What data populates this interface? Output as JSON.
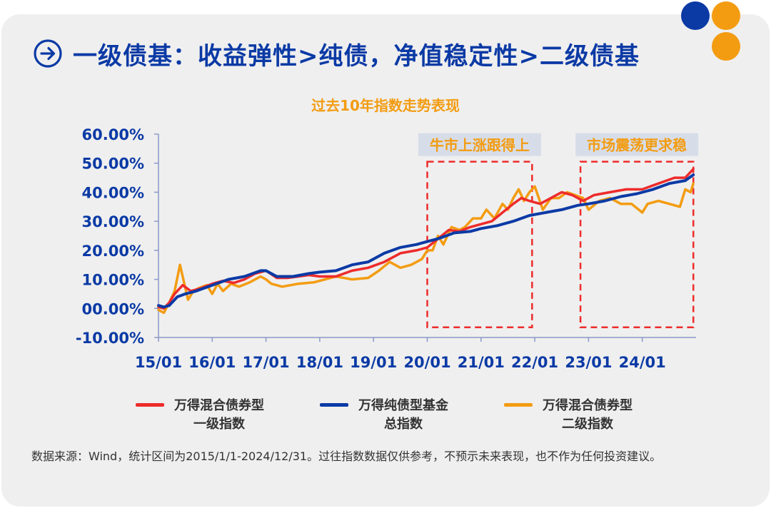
{
  "header": {
    "title": "一级债基：收益弹性>纯债，净值稳定性>二级债基",
    "arrow_icon": "arrow-right-circle-icon"
  },
  "colors": {
    "primary": "#0b3aa5",
    "accent": "#f39c12",
    "red": "#ee2b2b",
    "card_bg": "#efefef"
  },
  "chart_data": {
    "type": "line",
    "title": "过去10年指数走势表现",
    "xlabel": "",
    "ylabel": "",
    "ylim": [
      -0.1,
      0.6
    ],
    "y_ticks": [
      "60.00%",
      "50.00%",
      "40.00%",
      "30.00%",
      "20.00%",
      "10.00%",
      "00.00%",
      "-10.00%"
    ],
    "y_tick_values": [
      0.6,
      0.5,
      0.4,
      0.3,
      0.2,
      0.1,
      0.0,
      -0.1
    ],
    "x_ticks": [
      "15/01",
      "16/01",
      "17/01",
      "18/01",
      "19/01",
      "20/01",
      "21/01",
      "22/01",
      "23/01",
      "24/01"
    ],
    "x_tick_values": [
      2015,
      2016,
      2017,
      2018,
      2019,
      2020,
      2021,
      2022,
      2023,
      2024
    ],
    "xlim": [
      2015.0,
      2025.0
    ],
    "annotations": [
      {
        "label": "牛市上涨跟得上",
        "x_range": [
          2020.0,
          2021.95
        ],
        "y_range": [
          -0.065,
          0.505
        ]
      },
      {
        "label": "市场震荡更求稳",
        "x_range": [
          2022.85,
          2024.95
        ],
        "y_range": [
          -0.065,
          0.505
        ]
      }
    ],
    "series": [
      {
        "name": "万得混合债券型一级指数",
        "legend": [
          "万得混合债券型",
          "一级指数"
        ],
        "color": "#ee2b2b",
        "x": [
          2015.0,
          2015.1,
          2015.2,
          2015.3,
          2015.45,
          2015.6,
          2015.8,
          2016.0,
          2016.2,
          2016.4,
          2016.6,
          2016.8,
          2017.0,
          2017.2,
          2017.4,
          2017.6,
          2017.8,
          2018.0,
          2018.3,
          2018.6,
          2018.9,
          2019.2,
          2019.5,
          2019.8,
          2020.0,
          2020.2,
          2020.4,
          2020.6,
          2020.8,
          2021.0,
          2021.2,
          2021.4,
          2021.6,
          2021.75,
          2021.9,
          2022.1,
          2022.3,
          2022.5,
          2022.7,
          2022.9,
          2023.1,
          2023.4,
          2023.7,
          2024.0,
          2024.3,
          2024.6,
          2024.8,
          2024.95
        ],
        "y": [
          0.005,
          0.0,
          0.02,
          0.05,
          0.08,
          0.06,
          0.07,
          0.085,
          0.095,
          0.088,
          0.1,
          0.12,
          0.13,
          0.105,
          0.105,
          0.11,
          0.115,
          0.11,
          0.11,
          0.13,
          0.14,
          0.16,
          0.19,
          0.2,
          0.21,
          0.24,
          0.27,
          0.265,
          0.28,
          0.29,
          0.3,
          0.33,
          0.36,
          0.38,
          0.37,
          0.36,
          0.38,
          0.4,
          0.39,
          0.37,
          0.39,
          0.4,
          0.41,
          0.41,
          0.43,
          0.45,
          0.45,
          0.48
        ]
      },
      {
        "name": "万得纯债型基金总指数",
        "legend": [
          "万得纯债型基金",
          "总指数"
        ],
        "color": "#0b3aa5",
        "x": [
          2015.0,
          2015.1,
          2015.2,
          2015.35,
          2015.5,
          2015.7,
          2016.0,
          2016.3,
          2016.6,
          2016.9,
          2017.0,
          2017.2,
          2017.5,
          2017.8,
          2018.0,
          2018.3,
          2018.6,
          2018.9,
          2019.2,
          2019.5,
          2019.8,
          2020.0,
          2020.2,
          2020.5,
          2020.8,
          2021.0,
          2021.3,
          2021.6,
          2021.9,
          2022.2,
          2022.5,
          2022.8,
          2023.0,
          2023.3,
          2023.6,
          2023.9,
          2024.2,
          2024.5,
          2024.8,
          2024.95
        ],
        "y": [
          0.01,
          0.005,
          0.01,
          0.04,
          0.05,
          0.06,
          0.08,
          0.1,
          0.11,
          0.13,
          0.13,
          0.11,
          0.11,
          0.12,
          0.125,
          0.13,
          0.15,
          0.16,
          0.19,
          0.21,
          0.22,
          0.23,
          0.24,
          0.26,
          0.265,
          0.275,
          0.285,
          0.3,
          0.32,
          0.33,
          0.34,
          0.355,
          0.36,
          0.37,
          0.385,
          0.395,
          0.41,
          0.43,
          0.44,
          0.46
        ]
      },
      {
        "name": "万得混合债券型二级指数",
        "legend": [
          "万得混合债券型",
          "二级指数"
        ],
        "color": "#f39c12",
        "x": [
          2015.0,
          2015.1,
          2015.2,
          2015.3,
          2015.4,
          2015.45,
          2015.55,
          2015.65,
          2015.75,
          2015.9,
          2016.0,
          2016.1,
          2016.2,
          2016.35,
          2016.5,
          2016.7,
          2016.9,
          2017.0,
          2017.1,
          2017.3,
          2017.6,
          2017.9,
          2018.1,
          2018.3,
          2018.6,
          2018.9,
          2019.1,
          2019.3,
          2019.5,
          2019.7,
          2019.9,
          2020.0,
          2020.1,
          2020.2,
          2020.3,
          2020.45,
          2020.6,
          2020.7,
          2020.85,
          2021.0,
          2021.1,
          2021.25,
          2021.4,
          2021.5,
          2021.6,
          2021.7,
          2021.8,
          2021.9,
          2022.0,
          2022.15,
          2022.3,
          2022.45,
          2022.6,
          2022.75,
          2022.9,
          2023.0,
          2023.2,
          2023.4,
          2023.6,
          2023.8,
          2024.0,
          2024.1,
          2024.3,
          2024.5,
          2024.7,
          2024.8,
          2024.9,
          2024.95
        ],
        "y": [
          -0.005,
          -0.015,
          0.02,
          0.06,
          0.15,
          0.11,
          0.03,
          0.06,
          0.07,
          0.08,
          0.05,
          0.085,
          0.06,
          0.085,
          0.075,
          0.09,
          0.11,
          0.1,
          0.085,
          0.075,
          0.085,
          0.09,
          0.1,
          0.11,
          0.1,
          0.105,
          0.13,
          0.16,
          0.14,
          0.15,
          0.17,
          0.2,
          0.2,
          0.25,
          0.22,
          0.28,
          0.27,
          0.28,
          0.31,
          0.31,
          0.34,
          0.31,
          0.36,
          0.34,
          0.38,
          0.41,
          0.37,
          0.4,
          0.42,
          0.34,
          0.38,
          0.38,
          0.4,
          0.39,
          0.38,
          0.34,
          0.37,
          0.38,
          0.36,
          0.36,
          0.33,
          0.36,
          0.37,
          0.36,
          0.35,
          0.41,
          0.4,
          0.43
        ]
      }
    ]
  },
  "footnote": "数据来源：Wind，统计区间为2015/1/1-2024/12/31。过往指数数据仅供参考，不预示未来表现，也不作为任何投资建议。"
}
